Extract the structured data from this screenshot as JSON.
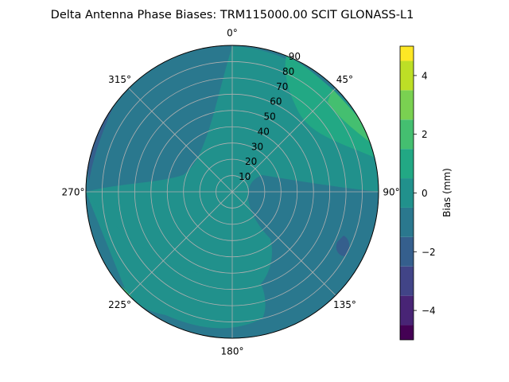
{
  "chart_data": {
    "type": "polar-contour",
    "title": "Delta Antenna Phase Biases: TRM115000.00    SCIT GLONASS-L1",
    "azimuth_ticks": [
      "0°",
      "45°",
      "90°",
      "135°",
      "180°",
      "225°",
      "270°",
      "315°"
    ],
    "zenith_ticks": [
      "10",
      "20",
      "30",
      "40",
      "50",
      "60",
      "70",
      "80",
      "90"
    ],
    "zenith_range": [
      0,
      90
    ],
    "colorbar": {
      "label": "Bias (mm)",
      "ticks": [
        "−4",
        "−2",
        "0",
        "2",
        "4"
      ],
      "range": [
        -5,
        5
      ],
      "levels": [
        -5,
        -4.5,
        -3.5,
        -2.5,
        -1.5,
        -0.5,
        0.5,
        1.5,
        2.5,
        3.5,
        4.5,
        5
      ],
      "colors": [
        "#440154",
        "#472c7a",
        "#3b528b",
        "#2c728e",
        "#21908d",
        "#27ad81",
        "#5cc863",
        "#aadc32",
        "#fde725"
      ],
      "band_colors": [
        "#440154",
        "#482475",
        "#414487",
        "#355f8d",
        "#2a788e",
        "#21918c",
        "#22a884",
        "#44bf70",
        "#7ad151",
        "#bddf26",
        "#fde725"
      ]
    },
    "regions": [
      {
        "description": "background",
        "bias": 0
      },
      {
        "description": "north-east high",
        "bias": 1.2
      },
      {
        "description": "east peak",
        "bias": 2.4
      },
      {
        "description": "north-west low",
        "bias": -0.9
      },
      {
        "description": "south-east low",
        "bias": -1.2
      },
      {
        "description": "central-south high",
        "bias": 0.7
      }
    ],
    "grid": true
  }
}
